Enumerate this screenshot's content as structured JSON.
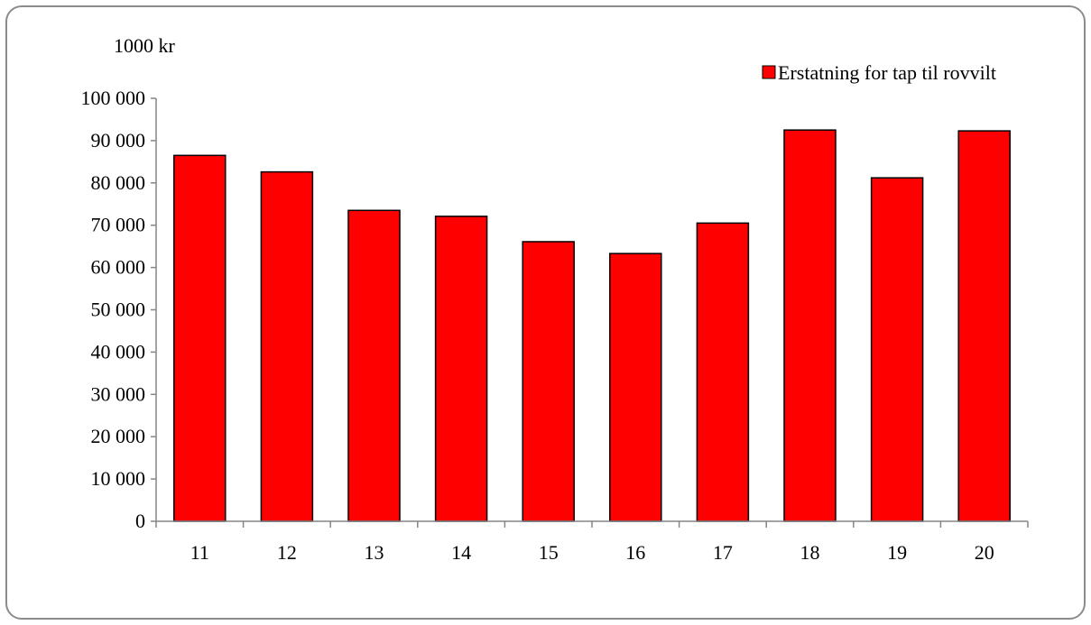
{
  "chart_data": {
    "type": "bar",
    "ylabel": "1000 kr",
    "xlabel": "",
    "categories": [
      "11",
      "12",
      "13",
      "14",
      "15",
      "16",
      "17",
      "18",
      "19",
      "20"
    ],
    "series": [
      {
        "name": "Erstatning for tap til rovvilt",
        "values": [
          86500,
          82600,
          73500,
          72100,
          66100,
          63300,
          70500,
          92500,
          81200,
          92300
        ]
      }
    ],
    "ylim": [
      0,
      100000
    ],
    "yticks": [
      0,
      10000,
      20000,
      30000,
      40000,
      50000,
      60000,
      70000,
      80000,
      90000,
      100000
    ],
    "ytick_labels": [
      "0",
      "10 000",
      "20 000",
      "30 000",
      "40 000",
      "50 000",
      "60 000",
      "70 000",
      "80 000",
      "90 000",
      "100 000"
    ],
    "grid": false,
    "legend_position": "top-right",
    "bar_color": "#ff0000",
    "bar_edge_color": "#000000"
  }
}
